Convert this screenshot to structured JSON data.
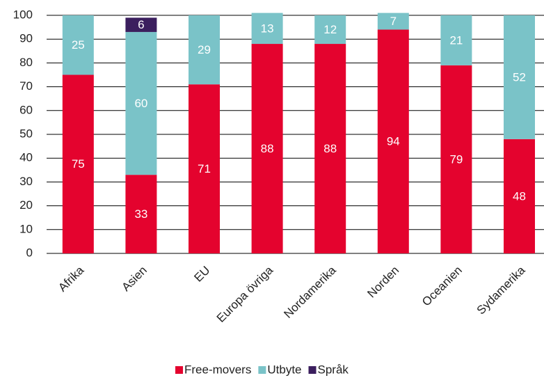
{
  "chart_data": {
    "type": "bar",
    "stacked": true,
    "categories": [
      "Afrika",
      "Asien",
      "EU",
      "Europa övriga",
      "Nordamerika",
      "Norden",
      "Oceanien",
      "Sydamerika"
    ],
    "series": [
      {
        "name": "Free-movers",
        "color": "#e4032e",
        "values": [
          75,
          33,
          71,
          88,
          88,
          94,
          79,
          48
        ]
      },
      {
        "name": "Utbyte",
        "color": "#7ac3c8",
        "values": [
          25,
          60,
          29,
          13,
          12,
          7,
          21,
          52
        ]
      },
      {
        "name": "Språk",
        "color": "#3b1f5e",
        "values": [
          null,
          6,
          null,
          null,
          null,
          null,
          null,
          null
        ]
      }
    ],
    "ylim": [
      0,
      100
    ],
    "yticks": [
      0,
      10,
      20,
      30,
      40,
      50,
      60,
      70,
      80,
      90,
      100
    ],
    "grid": true,
    "legend": "bottom"
  }
}
